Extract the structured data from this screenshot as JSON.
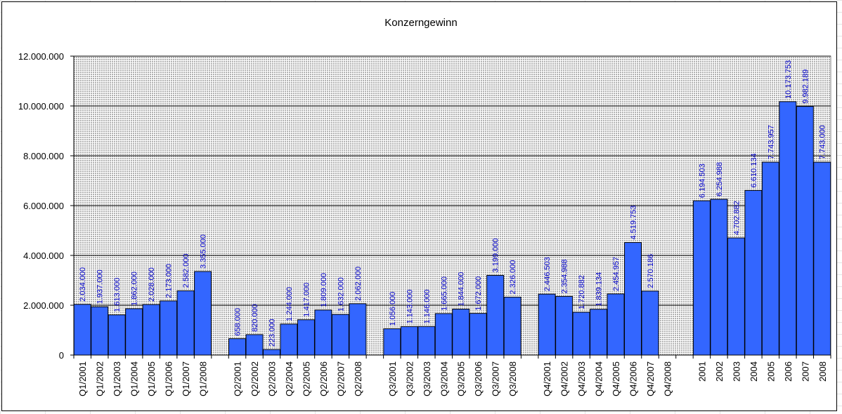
{
  "chart_data": {
    "type": "bar",
    "title": "Konzerngewinn",
    "xlabel": "",
    "ylabel": "",
    "ylim": [
      0,
      12000000
    ],
    "yticks": [
      0,
      2000000,
      4000000,
      6000000,
      8000000,
      10000000,
      12000000
    ],
    "ytick_labels": [
      "0",
      "2.000.000",
      "4.000.000",
      "6.000.000",
      "8.000.000",
      "10.000.000",
      "12.000.000"
    ],
    "grid": true,
    "legend": "none",
    "colors": {
      "bar": "#3366ff",
      "plot_background": "#c0c0c0",
      "label": "#0000cc"
    },
    "categories": [
      "Q1/2001",
      "Q1/2002",
      "Q1/2003",
      "Q1/2004",
      "Q1/2005",
      "Q1/2006",
      "Q1/2007",
      "Q1/2008",
      "",
      "Q2/2001",
      "Q2/2002",
      "Q2/2003",
      "Q2/2004",
      "Q2/2005",
      "Q2/2006",
      "Q2/2007",
      "Q2/2008",
      "",
      "Q3/2001",
      "Q3/2002",
      "Q3/2003",
      "Q3/2004",
      "Q3/2005",
      "Q3/2006",
      "Q3/2007",
      "Q3/2008",
      "",
      "Q4/2001",
      "Q4/2002",
      "Q4/2003",
      "Q4/2004",
      "Q4/2005",
      "Q4/2006",
      "Q4/2007",
      "Q4/2008",
      "",
      "2001",
      "2002",
      "2003",
      "2004",
      "2005",
      "2006",
      "2007",
      "2008"
    ],
    "values": [
      2034000,
      1937000,
      1613000,
      1862000,
      2028000,
      2173000,
      2582000,
      3355000,
      null,
      658000,
      820000,
      223000,
      1244000,
      1417000,
      1809000,
      1632000,
      2062000,
      null,
      1056000,
      1143000,
      1146000,
      1665000,
      1844000,
      1672000,
      3199000,
      2326000,
      null,
      2446503,
      2354988,
      1720882,
      1839134,
      2454957,
      4519753,
      2570186,
      null,
      null,
      6194503,
      6254988,
      4702882,
      6610134,
      7743957,
      10173753,
      9982189,
      7743000
    ],
    "data_labels": [
      "2.034.000",
      "1.937.000",
      "1.613.000",
      "1.862.000",
      "2.028.000",
      "2.173.000",
      "2.582.000",
      "3.355.000",
      "",
      "658.000",
      "820.000",
      "223.000",
      "1.244.000",
      "1.417.000",
      "1.809.000",
      "1.632.000",
      "2.062.000",
      "",
      "1.056.000",
      "1.143.000",
      "1.146.000",
      "1.665.000",
      "1.844.000",
      "1.672.000",
      "3.199.000",
      "2.326.000",
      "",
      "2.446.503",
      "2.354.988",
      "1.720.882",
      "1.839.134",
      "2.454.957",
      "4.519.753",
      "2.570.186",
      "",
      "",
      "6.194.503",
      "6.254.988",
      "4.702.882",
      "6.610.134",
      "7.743.957",
      "10.173.753",
      "9.982.189",
      "7.743.000"
    ]
  }
}
